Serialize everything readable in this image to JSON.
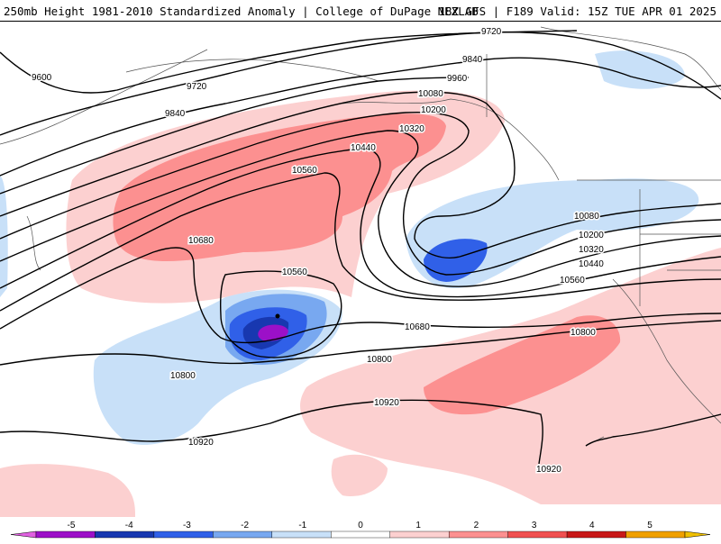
{
  "header": {
    "left_title": "250mb Height 1981-2010 Standardized Anomaly | College of DuPage NEXLAB",
    "right_title": "18Z GFS | F189 Valid: 15Z TUE APR 01 2025"
  },
  "colorbar": {
    "ticks": [
      "-5",
      "-4",
      "-3",
      "-2",
      "-1",
      "0",
      "1",
      "2",
      "3",
      "4",
      "5"
    ],
    "colors": [
      "#9c10c8",
      "#1838b0",
      "#3060e8",
      "#78a8f0",
      "#c8e0f8",
      "#ffffff",
      "#fcd0d0",
      "#fc9090",
      "#f05050",
      "#c81818",
      "#f0a000"
    ],
    "left_arrow_color": "#e060e0",
    "right_arrow_color": "#f0c000"
  },
  "contours": {
    "labels": [
      "9720",
      "9600",
      "9720",
      "9840",
      "9840",
      "9960",
      "10080",
      "10200",
      "10320",
      "10440",
      "10560",
      "10680",
      "10560",
      "10080",
      "10200",
      "10320",
      "10440",
      "10560",
      "10680",
      "10800",
      "10800",
      "10800",
      "10920",
      "10920",
      "10920"
    ]
  }
}
